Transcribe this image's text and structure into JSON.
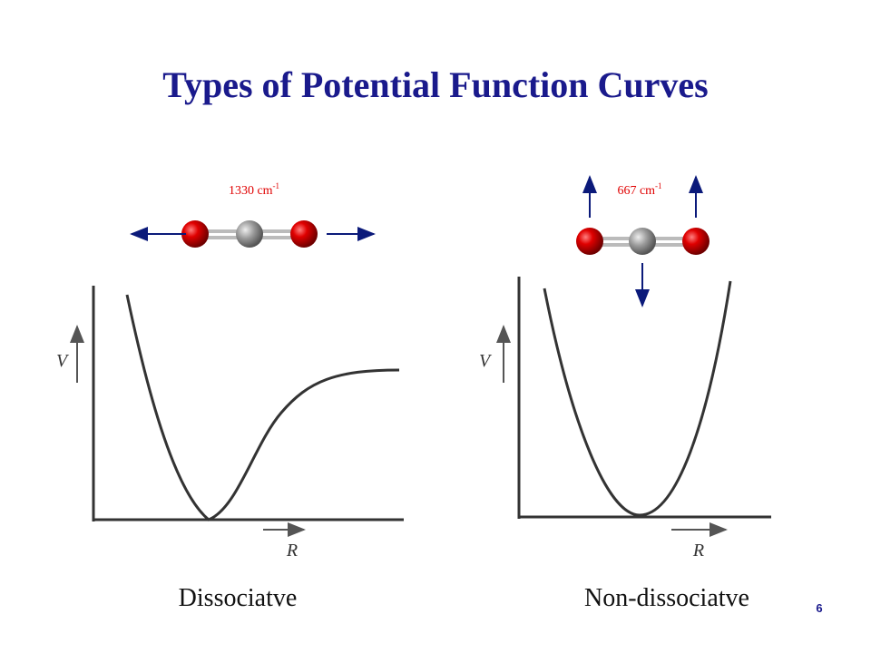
{
  "title": "Types of Potential Function Curves",
  "panels": [
    {
      "vibration": {
        "label": "1330 cm",
        "exponent": "-1"
      },
      "y_axis": "V",
      "x_axis": "R",
      "caption": "Dissociatve"
    },
    {
      "vibration": {
        "label": "667 cm",
        "exponent": "-1"
      },
      "y_axis": "V",
      "x_axis": "R",
      "caption": "Non-dissociatve"
    }
  ],
  "page_number": "6"
}
